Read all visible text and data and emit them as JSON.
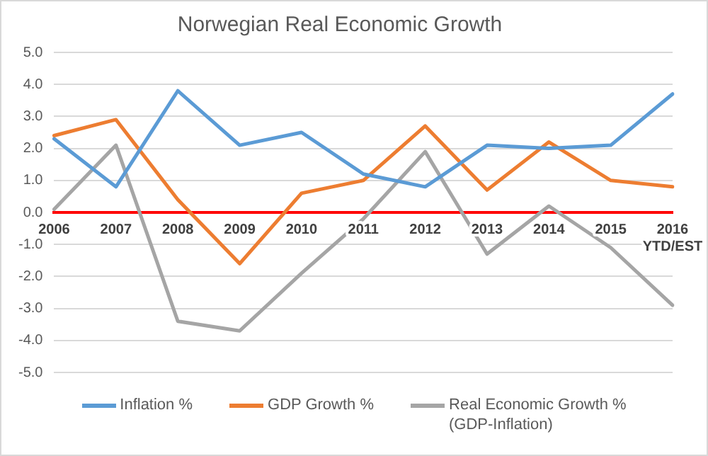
{
  "chart_data": {
    "type": "line",
    "title": "Norwegian Real Economic Growth",
    "categories": [
      "2006",
      "2007",
      "2008",
      "2009",
      "2010",
      "2011",
      "2012",
      "2013",
      "2014",
      "2015",
      "2016\nYTD/EST"
    ],
    "series": [
      {
        "name": "Inflation %",
        "color": "#5b9bd5",
        "values": [
          2.3,
          0.8,
          3.8,
          2.1,
          2.5,
          1.2,
          0.8,
          2.1,
          2.0,
          2.1,
          3.7
        ]
      },
      {
        "name": "GDP Growth %",
        "color": "#ed7d31",
        "values": [
          2.4,
          2.9,
          0.4,
          -1.6,
          0.6,
          1.0,
          2.7,
          0.7,
          2.2,
          1.0,
          0.8
        ]
      },
      {
        "name": "Real Economic Growth %\n(GDP-Inflation)",
        "color": "#a5a5a5",
        "values": [
          0.1,
          2.1,
          -3.4,
          -3.7,
          -1.9,
          -0.2,
          1.9,
          -1.3,
          0.2,
          -1.1,
          -2.9
        ]
      }
    ],
    "ylim": [
      -5,
      5
    ],
    "yticks": [
      {
        "value": -5,
        "label": "-5.0"
      },
      {
        "value": -4,
        "label": "-4.0"
      },
      {
        "value": -3,
        "label": "-3.0"
      },
      {
        "value": -2,
        "label": "-2.0"
      },
      {
        "value": -1,
        "label": "-1.0"
      },
      {
        "value": 0,
        "label": "0.0"
      },
      {
        "value": 1,
        "label": "1.0"
      },
      {
        "value": 2,
        "label": "2.0"
      },
      {
        "value": 3,
        "label": "3.0"
      },
      {
        "value": 4,
        "label": "4.0"
      },
      {
        "value": 5,
        "label": "5.0"
      }
    ],
    "grid": "y",
    "legend": "bottom",
    "marker": "none",
    "line_style": "solid"
  }
}
